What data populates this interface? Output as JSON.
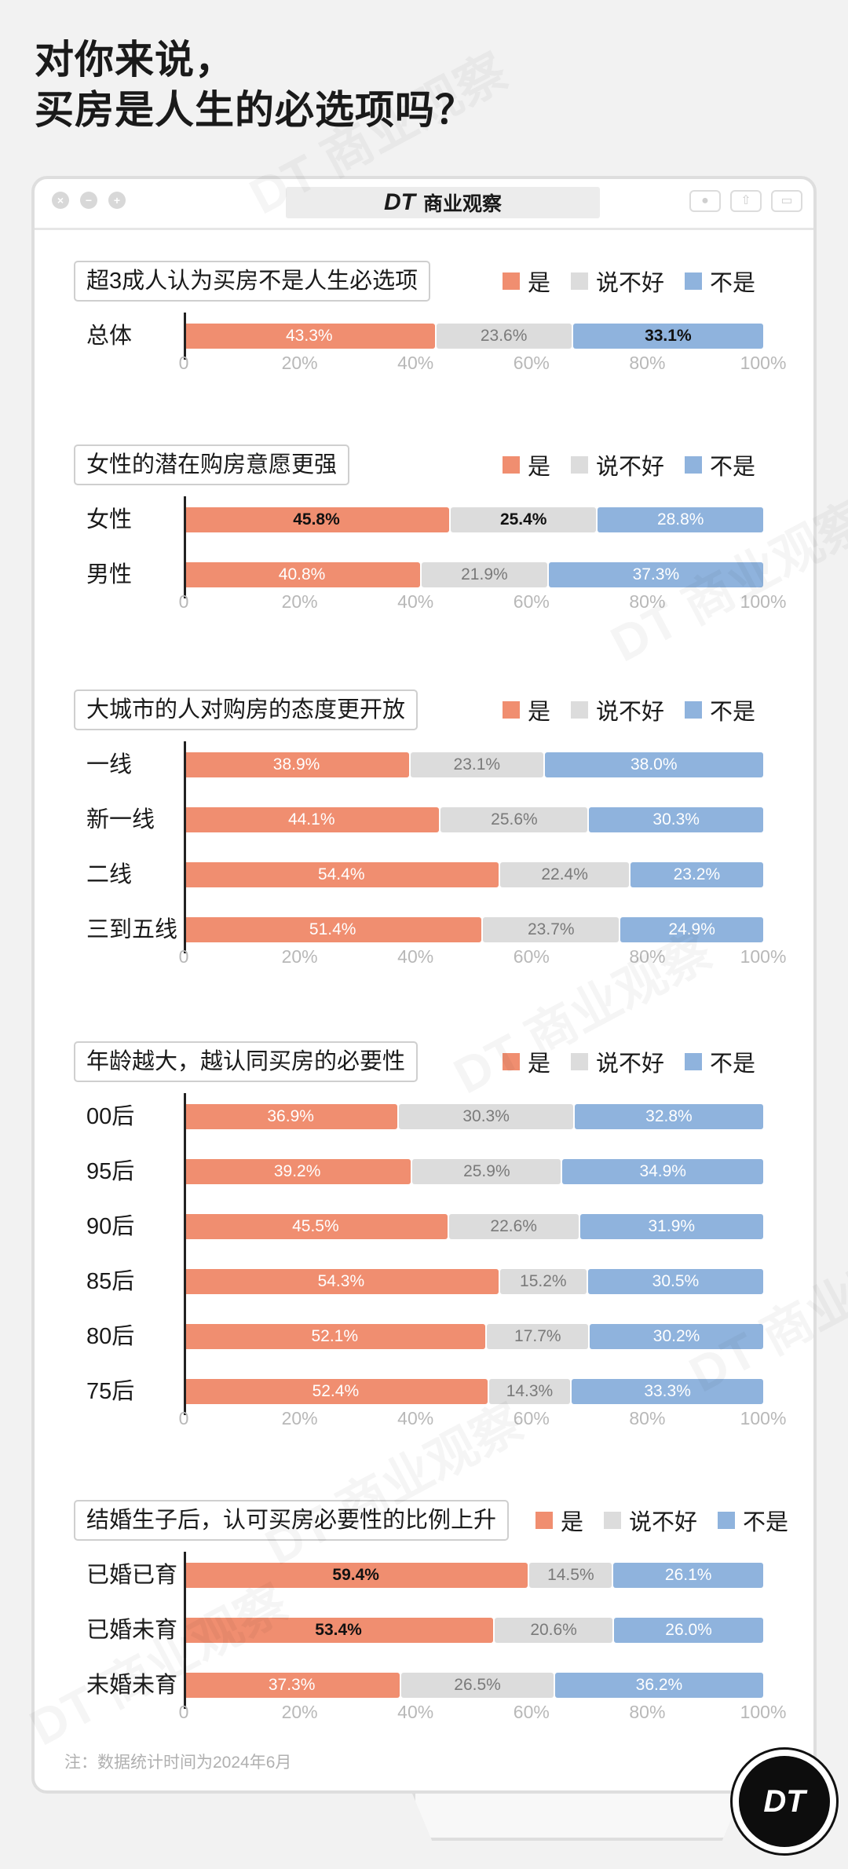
{
  "title_line1": "对你来说，",
  "title_line2": "买房是人生的必选项吗？",
  "brand": {
    "logo": "DT",
    "name": "商业观察"
  },
  "window_controls": [
    "×",
    "−",
    "+"
  ],
  "legend": {
    "yes": "是",
    "unsure": "说不好",
    "no": "不是"
  },
  "colors": {
    "yes": "#f08e70",
    "unsure": "#dcdcdc",
    "no": "#8fb3dd"
  },
  "watermark": "DT 商业观察",
  "footnote": "注：数据统计时间为2024年6月",
  "badge": "DT",
  "chart_data": [
    {
      "type": "bar",
      "stacked": true,
      "orientation": "horizontal",
      "title": "超3成人认为买房不是人生必选项",
      "categories": [
        "总体"
      ],
      "series": [
        {
          "name": "是",
          "values": [
            43.3
          ]
        },
        {
          "name": "说不好",
          "values": [
            23.6
          ]
        },
        {
          "name": "不是",
          "values": [
            33.1
          ]
        }
      ],
      "bold": [
        [
          2
        ]
      ],
      "xticks": [
        "0",
        "20%",
        "40%",
        "60%",
        "80%",
        "100%"
      ],
      "xlim": [
        0,
        100
      ]
    },
    {
      "type": "bar",
      "stacked": true,
      "orientation": "horizontal",
      "title": "女性的潜在购房意愿更强",
      "categories": [
        "女性",
        "男性"
      ],
      "series": [
        {
          "name": "是",
          "values": [
            45.8,
            40.8
          ]
        },
        {
          "name": "说不好",
          "values": [
            25.4,
            21.9
          ]
        },
        {
          "name": "不是",
          "values": [
            28.8,
            37.3
          ]
        }
      ],
      "bold": [
        [
          0,
          1
        ],
        []
      ],
      "xticks": [
        "0",
        "20%",
        "40%",
        "60%",
        "80%",
        "100%"
      ],
      "xlim": [
        0,
        100
      ]
    },
    {
      "type": "bar",
      "stacked": true,
      "orientation": "horizontal",
      "title": "大城市的人对购房的态度更开放",
      "categories": [
        "一线",
        "新一线",
        "二线",
        "三到五线"
      ],
      "series": [
        {
          "name": "是",
          "values": [
            38.9,
            44.1,
            54.4,
            51.4
          ]
        },
        {
          "name": "说不好",
          "values": [
            23.1,
            25.6,
            22.4,
            23.7
          ]
        },
        {
          "name": "不是",
          "values": [
            38.0,
            30.3,
            23.2,
            24.9
          ]
        }
      ],
      "bold": [
        [],
        [],
        [],
        []
      ],
      "xticks": [
        "0",
        "20%",
        "40%",
        "60%",
        "80%",
        "100%"
      ],
      "xlim": [
        0,
        100
      ]
    },
    {
      "type": "bar",
      "stacked": true,
      "orientation": "horizontal",
      "title": "年龄越大，越认同买房的必要性",
      "categories": [
        "00后",
        "95后",
        "90后",
        "85后",
        "80后",
        "75后"
      ],
      "series": [
        {
          "name": "是",
          "values": [
            36.9,
            39.2,
            45.5,
            54.3,
            52.1,
            52.4
          ]
        },
        {
          "name": "说不好",
          "values": [
            30.3,
            25.9,
            22.6,
            15.2,
            17.7,
            14.3
          ]
        },
        {
          "name": "不是",
          "values": [
            32.8,
            34.9,
            31.9,
            30.5,
            30.2,
            33.3
          ]
        }
      ],
      "bold": [
        [],
        [],
        [],
        [],
        [],
        []
      ],
      "xticks": [
        "0",
        "20%",
        "40%",
        "60%",
        "80%",
        "100%"
      ],
      "xlim": [
        0,
        100
      ]
    },
    {
      "type": "bar",
      "stacked": true,
      "orientation": "horizontal",
      "title": "结婚生子后，认可买房必要性的比例上升",
      "categories": [
        "已婚已育",
        "已婚未育",
        "未婚未育"
      ],
      "series": [
        {
          "name": "是",
          "values": [
            59.4,
            53.4,
            37.3
          ]
        },
        {
          "name": "说不好",
          "values": [
            14.5,
            20.6,
            26.5
          ]
        },
        {
          "name": "不是",
          "values": [
            26.1,
            26.0,
            36.2
          ]
        }
      ],
      "bold": [
        [
          0
        ],
        [
          0
        ],
        []
      ],
      "xticks": [
        "0",
        "20%",
        "40%",
        "60%",
        "80%",
        "100%"
      ],
      "xlim": [
        0,
        100
      ]
    }
  ]
}
